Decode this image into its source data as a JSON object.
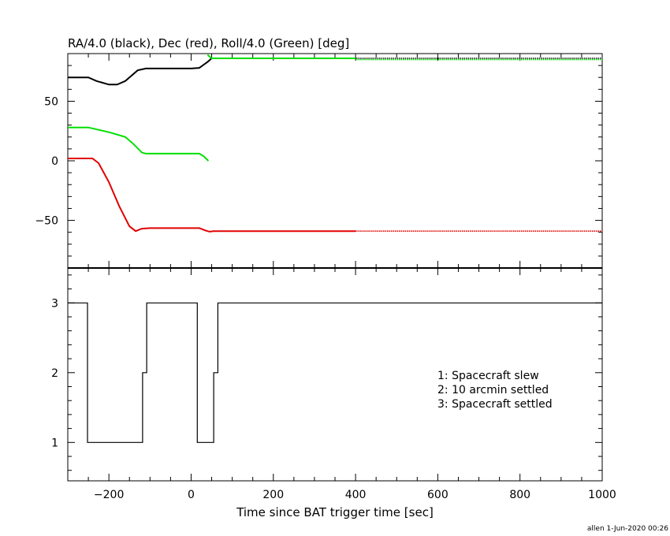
{
  "footer": {
    "stamp": "allen  1-Jun-2020 00:26"
  },
  "chart_data": [
    {
      "type": "line",
      "title": "RA/4.0 (black), Dec (red), Roll/4.0 (Green) [deg]",
      "xlabel": "",
      "ylabel": "",
      "xlim": [
        -300,
        1000
      ],
      "ylim": [
        -90,
        90
      ],
      "yticks": [
        {
          "value": 50,
          "label": "50"
        },
        {
          "value": 0,
          "label": "0"
        },
        {
          "value": -50,
          "label": "−50"
        }
      ],
      "series": [
        {
          "color": "#000000",
          "points": [
            [
              -300,
              70
            ],
            [
              -250,
              70
            ],
            [
              -230,
              67
            ],
            [
              -200,
              64
            ],
            [
              -180,
              64
            ],
            [
              -160,
              67
            ],
            [
              -130,
              76
            ],
            [
              -110,
              77.5
            ],
            [
              -60,
              77.5
            ],
            [
              0,
              77.5
            ],
            [
              20,
              78
            ],
            [
              40,
              83
            ],
            [
              50,
              86
            ],
            [
              400,
              86
            ]
          ],
          "dotted": [
            [
              400,
              86
            ],
            [
              1000,
              86
            ]
          ]
        },
        {
          "color": "#00e000",
          "points": [
            [
              -300,
              28
            ],
            [
              -250,
              28
            ],
            [
              -200,
              24
            ],
            [
              -160,
              20
            ],
            [
              -140,
              14
            ],
            [
              -120,
              7
            ],
            [
              -110,
              6
            ],
            [
              -50,
              6
            ],
            [
              0,
              6
            ],
            [
              20,
              6
            ],
            [
              30,
              4
            ],
            [
              42,
              0
            ]
          ],
          "points2": [
            [
              40,
              89
            ],
            [
              50,
              86
            ],
            [
              400,
              86
            ]
          ],
          "dotted": [
            [
              400,
              85
            ],
            [
              1000,
              85
            ]
          ]
        },
        {
          "color": "#e00000",
          "points": [
            [
              -300,
              2
            ],
            [
              -240,
              2
            ],
            [
              -225,
              -2
            ],
            [
              -200,
              -18
            ],
            [
              -175,
              -38
            ],
            [
              -150,
              -55
            ],
            [
              -135,
              -59
            ],
            [
              -120,
              -57
            ],
            [
              -100,
              -56.5
            ],
            [
              20,
              -56.5
            ],
            [
              35,
              -58.5
            ],
            [
              45,
              -59.5
            ],
            [
              55,
              -59
            ],
            [
              400,
              -59
            ]
          ],
          "dotted": [
            [
              400,
              -59
            ],
            [
              1000,
              -59
            ]
          ]
        }
      ]
    },
    {
      "type": "line",
      "title": "",
      "xlabel": "Time since BAT trigger time [sec]",
      "ylabel": "",
      "xlim": [
        -300,
        1000
      ],
      "ylim": [
        0.45,
        3.5
      ],
      "yticks": [
        {
          "value": 3,
          "label": "3"
        },
        {
          "value": 2,
          "label": "2"
        },
        {
          "value": 1,
          "label": "1"
        }
      ],
      "xticks": [
        {
          "value": -200,
          "label": "−200"
        },
        {
          "value": 0,
          "label": "0"
        },
        {
          "value": 200,
          "label": "200"
        },
        {
          "value": 400,
          "label": "400"
        },
        {
          "value": 600,
          "label": "600"
        },
        {
          "value": 800,
          "label": "800"
        },
        {
          "value": 1000,
          "label": "1000"
        }
      ],
      "legend": [
        "1: Spacecraft slew",
        "2: 10 arcmin settled",
        "3: Spacecraft settled"
      ],
      "series": [
        {
          "color": "#000000",
          "steps": [
            [
              -300,
              3
            ],
            [
              -252,
              3
            ],
            [
              -252,
              1
            ],
            [
              -118,
              1
            ],
            [
              -118,
              2
            ],
            [
              -108,
              2
            ],
            [
              -108,
              3
            ],
            [
              15,
              3
            ],
            [
              15,
              1
            ],
            [
              55,
              1
            ],
            [
              55,
              2
            ],
            [
              65,
              2
            ],
            [
              65,
              3
            ],
            [
              1000,
              3
            ]
          ]
        }
      ]
    }
  ]
}
